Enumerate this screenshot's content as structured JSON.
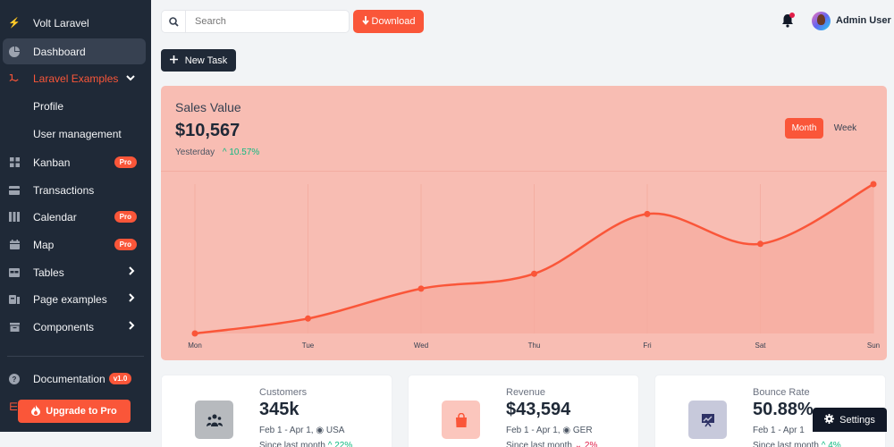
{
  "sidebar": {
    "brand": "Volt Laravel",
    "items": [
      {
        "label": "Dashboard",
        "icon": "pie-chart-icon"
      },
      {
        "label": "Laravel Examples",
        "icon": "laravel-icon"
      },
      {
        "label": "Kanban",
        "icon": "grid-icon",
        "badge": "Pro"
      },
      {
        "label": "Transactions",
        "icon": "credit-card-icon"
      },
      {
        "label": "Calendar",
        "icon": "calendar-columns-icon",
        "badge": "Pro"
      },
      {
        "label": "Map",
        "icon": "calendar-icon",
        "badge": "Pro"
      },
      {
        "label": "Tables",
        "icon": "table-icon"
      },
      {
        "label": "Page examples",
        "icon": "pages-icon"
      },
      {
        "label": "Components",
        "icon": "archive-icon"
      }
    ],
    "sub_items": [
      "Profile",
      "User management"
    ],
    "documentation": {
      "label": "Documentation",
      "badge": "v1.0"
    },
    "upgrade_label": "Upgrade to Pro"
  },
  "topbar": {
    "search_placeholder": "Search",
    "download_label": "Download",
    "user_name": "Admin User"
  },
  "new_task_label": "New Task",
  "sales": {
    "title": "Sales Value",
    "value": "$10,567",
    "period": "Yesterday",
    "change": "10.57%",
    "tabs": {
      "month": "Month",
      "week": "Week"
    }
  },
  "chart_data": {
    "type": "line",
    "title": "Sales Value",
    "categories": [
      "Mon",
      "Tue",
      "Wed",
      "Thu",
      "Fri",
      "Sat",
      "Sun"
    ],
    "series": [
      {
        "name": "Sales",
        "values": [
          0,
          10,
          30,
          40,
          80,
          60,
          100
        ]
      }
    ],
    "xlabel": "",
    "ylabel": "",
    "ylim": [
      0,
      100
    ],
    "grid": "vertical",
    "colors": {
      "line": "#fa5639",
      "background": "#f8bdb3"
    }
  },
  "stats": [
    {
      "label": "Customers",
      "value": "345k",
      "range": "Feb 1 - Apr 1,",
      "region": "USA",
      "since": "Since last month",
      "change": "22%",
      "trend": "up"
    },
    {
      "label": "Revenue",
      "value": "$43,594",
      "range": "Feb 1 - Apr 1,",
      "region": "GER",
      "since": "Since last month",
      "change": "2%",
      "trend": "down"
    },
    {
      "label": "Bounce Rate",
      "value": "50.88%",
      "range": "Feb 1 - Apr 1",
      "region": "",
      "since": "Since last month",
      "change": "4%",
      "trend": "up"
    }
  ],
  "settings_label": "Settings"
}
